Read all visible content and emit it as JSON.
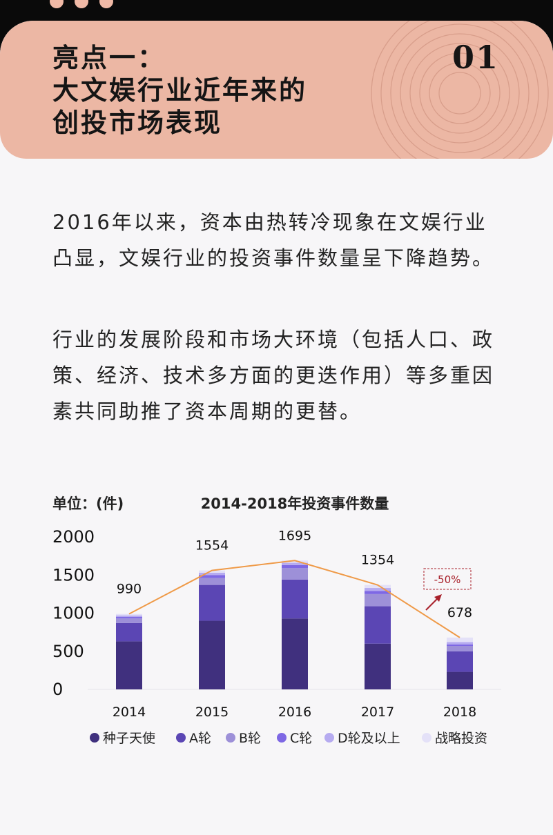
{
  "header": {
    "title_lines": [
      "亮点一：",
      "大文娱行业近年来的",
      "创投市场表现"
    ],
    "number": "01"
  },
  "paragraphs": [
    "2016年以来，资本由热转冷现象在文娱行业凸显，文娱行业的投资事件数量呈下降趋势。",
    "行业的发展阶段和市场大环境（包括人口、政策、经济、技术多方面的更迭作用）等多重因素共同助推了资本周期的更替。"
  ],
  "chart_data": {
    "type": "bar",
    "stacked": true,
    "title": "2014-2018年投资事件数量",
    "unit_label": "单位：(件)",
    "categories": [
      "2014",
      "2015",
      "2016",
      "2017",
      "2018"
    ],
    "y_ticks": [
      "0",
      "500",
      "1000",
      "1500",
      "2000"
    ],
    "ylim": [
      0,
      2000
    ],
    "series": [
      {
        "name": "种子天使",
        "color": "#40307e",
        "values": [
          630,
          900,
          930,
          600,
          230
        ]
      },
      {
        "name": "A轮",
        "color": "#5b46b4",
        "values": [
          240,
          470,
          510,
          490,
          270
        ]
      },
      {
        "name": "B轮",
        "color": "#9d90d8",
        "values": [
          60,
          90,
          150,
          160,
          70
        ]
      },
      {
        "name": "C轮",
        "color": "#7e68e4",
        "values": [
          20,
          40,
          40,
          40,
          20
        ]
      },
      {
        "name": "D轮及以上",
        "color": "#b6abf0",
        "values": [
          20,
          30,
          30,
          40,
          30
        ]
      },
      {
        "name": "战略投资",
        "color": "#e4e1f8",
        "values": [
          20,
          30,
          30,
          40,
          60
        ]
      }
    ],
    "totals": [
      990,
      1554,
      1695,
      1354,
      678
    ],
    "trend_line_color": "#ef9a48",
    "annotation": {
      "text": "-50%",
      "color": "#a8202a"
    }
  }
}
